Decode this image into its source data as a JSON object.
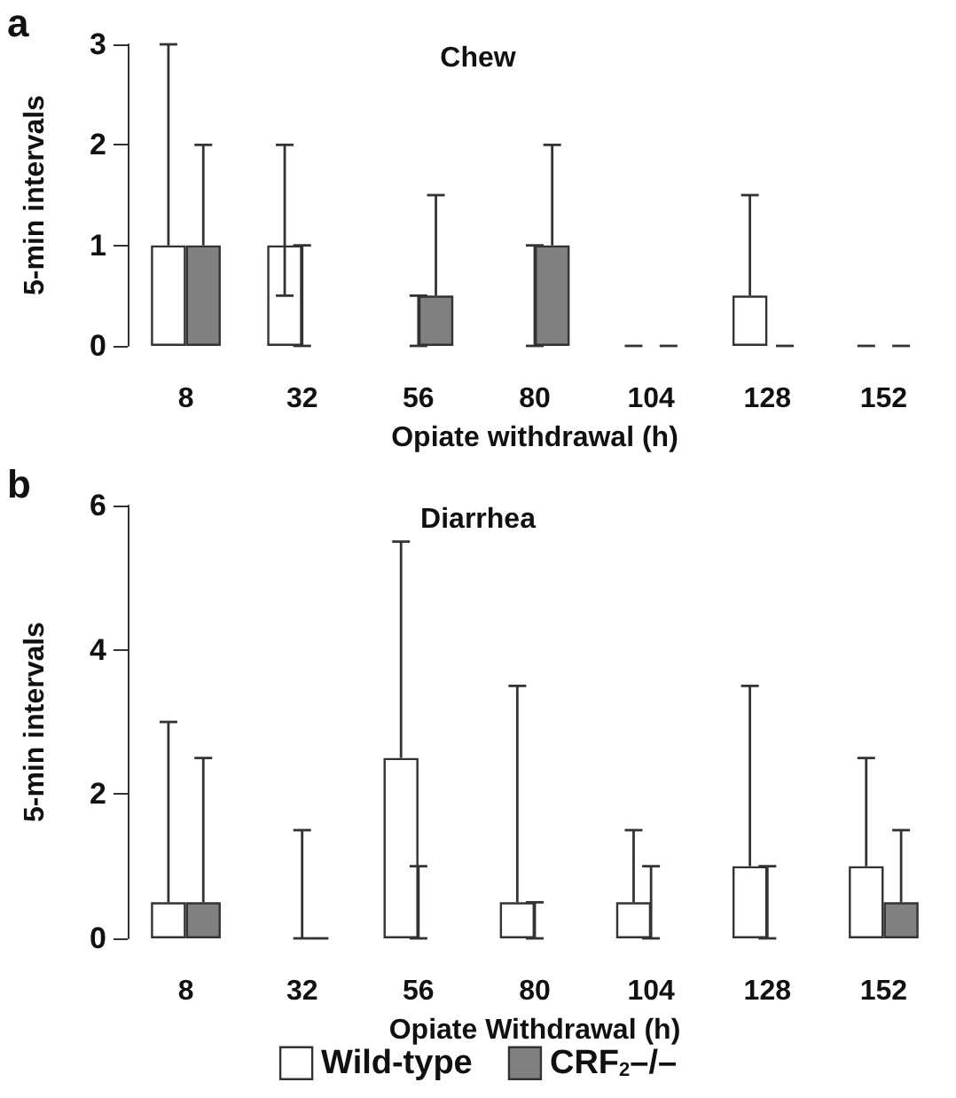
{
  "chart_data": [
    {
      "type": "bar",
      "title": "Chew",
      "xlabel": "Opiate withdrawal (h)",
      "ylabel": "5-min intervals",
      "annotations": [
        "a"
      ],
      "categories": [
        "8",
        "32",
        "56",
        "80",
        "104",
        "128",
        "152"
      ],
      "ylim": [
        0,
        3
      ],
      "yticks": [
        0,
        1,
        2,
        3
      ],
      "grid": false,
      "series": [
        {
          "color": "#ffffff",
          "values": [
            1,
            1,
            0,
            0,
            0,
            0.5,
            0
          ],
          "errors": [
            [
              1,
              3
            ],
            [
              0.5,
              2
            ],
            [
              0,
              0.5
            ],
            [
              0,
              1
            ],
            [
              0,
              0
            ],
            [
              0.5,
              1.5
            ],
            [
              0,
              0
            ]
          ]
        },
        {
          "color": "#808080",
          "values": [
            1,
            0,
            0.5,
            1,
            0,
            0,
            0
          ],
          "errors": [
            [
              1,
              2
            ],
            [
              0,
              1
            ],
            [
              0.5,
              1.5
            ],
            [
              1,
              2
            ],
            [
              0,
              0
            ],
            [
              0,
              0
            ],
            [
              0,
              0
            ]
          ]
        }
      ]
    },
    {
      "type": "bar",
      "title": "Diarrhea",
      "xlabel": "Opiate Withdrawal (h)",
      "ylabel": "5-min intervals",
      "annotations": [
        "b"
      ],
      "categories": [
        "8",
        "32",
        "56",
        "80",
        "104",
        "128",
        "152"
      ],
      "ylim": [
        0,
        6
      ],
      "yticks": [
        0,
        2,
        4,
        6
      ],
      "grid": false,
      "legend": "bottom",
      "series": [
        {
          "name": "Wild-type",
          "color": "#ffffff",
          "values": [
            0.5,
            0,
            2.5,
            0.5,
            0.5,
            1,
            1
          ],
          "errors": [
            [
              0.5,
              3
            ],
            [
              0,
              1.5
            ],
            [
              2.5,
              5.5
            ],
            [
              0.5,
              3.5
            ],
            [
              0.5,
              1.5
            ],
            [
              1,
              3.5
            ],
            [
              1,
              2.5
            ]
          ]
        },
        {
          "name": "CRF$_{2}$–/–",
          "color": "#808080",
          "values": [
            0.5,
            0,
            0,
            0,
            0,
            0,
            0.5
          ],
          "errors": [
            [
              0.5,
              2.5
            ],
            [
              0,
              0
            ],
            [
              0,
              1
            ],
            [
              0,
              0.5
            ],
            [
              0,
              1
            ],
            [
              0,
              1
            ],
            [
              0.5,
              1.5
            ]
          ]
        }
      ]
    }
  ]
}
